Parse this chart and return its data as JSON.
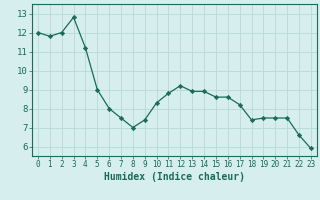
{
  "x": [
    0,
    1,
    2,
    3,
    4,
    5,
    6,
    7,
    8,
    9,
    10,
    11,
    12,
    13,
    14,
    15,
    16,
    17,
    18,
    19,
    20,
    21,
    22,
    23
  ],
  "y": [
    12.0,
    11.8,
    12.0,
    12.8,
    11.2,
    9.0,
    8.0,
    7.5,
    7.0,
    7.4,
    8.3,
    8.8,
    9.2,
    8.9,
    8.9,
    8.6,
    8.6,
    8.2,
    7.4,
    7.5,
    7.5,
    7.5,
    6.6,
    5.9
  ],
  "line_color": "#1a6b5a",
  "marker": "D",
  "marker_size": 2.2,
  "bg_color": "#d6eeee",
  "grid_color": "#b8d8d8",
  "xlabel": "Humidex (Indice chaleur)",
  "xlim": [
    -0.5,
    23.5
  ],
  "ylim": [
    5.5,
    13.5
  ],
  "yticks": [
    6,
    7,
    8,
    9,
    10,
    11,
    12,
    13
  ],
  "xticks": [
    0,
    1,
    2,
    3,
    4,
    5,
    6,
    7,
    8,
    9,
    10,
    11,
    12,
    13,
    14,
    15,
    16,
    17,
    18,
    19,
    20,
    21,
    22,
    23
  ]
}
